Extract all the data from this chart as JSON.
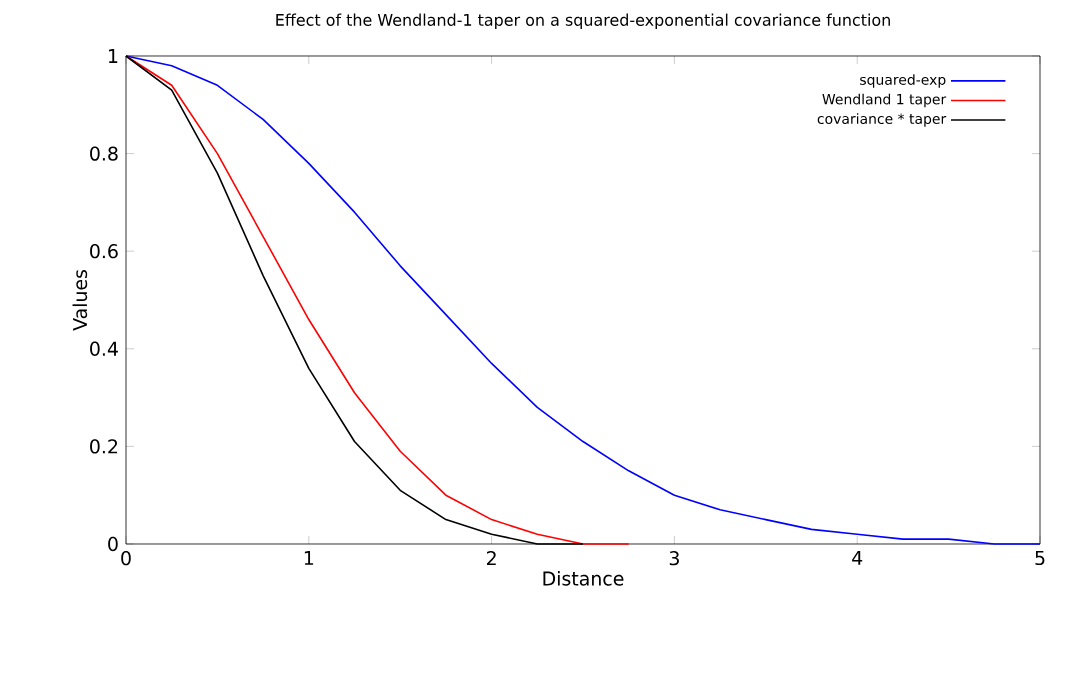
{
  "chart_data": {
    "type": "line",
    "title": "Effect of the Wendland-1 taper on a squared-exponential covariance function",
    "xlabel": "Distance",
    "ylabel": "Values",
    "x": [
      0,
      0.25,
      0.5,
      0.75,
      1,
      1.25,
      1.5,
      1.75,
      2,
      2.25,
      2.5,
      2.75,
      3,
      3.25,
      3.5,
      3.75,
      4,
      4.25,
      4.5,
      4.75,
      5
    ],
    "series": [
      {
        "name": "squared-exp",
        "color": "#0000ff",
        "values": [
          1,
          0.98,
          0.94,
          0.87,
          0.78,
          0.68,
          0.57,
          0.47,
          0.37,
          0.28,
          0.21,
          0.15,
          0.1,
          0.07,
          0.05,
          0.03,
          0.02,
          0.01,
          0.01,
          0,
          0
        ]
      },
      {
        "name": "Wendland 1 taper",
        "color": "#ff0000",
        "values": [
          1,
          0.94,
          0.8,
          0.63,
          0.46,
          0.31,
          0.19,
          0.1,
          0.05,
          0.02,
          0,
          0,
          null,
          null,
          null,
          null,
          null,
          null,
          null,
          null,
          null
        ]
      },
      {
        "name": "covariance * taper",
        "color": "#000000",
        "values": [
          1,
          0.93,
          0.76,
          0.55,
          0.36,
          0.21,
          0.11,
          0.05,
          0.02,
          0,
          0,
          null,
          null,
          null,
          null,
          null,
          null,
          null,
          null,
          null,
          null
        ]
      }
    ],
    "xlim": [
      0,
      5
    ],
    "ylim": [
      0,
      1
    ],
    "xticks": [
      0,
      1,
      2,
      3,
      4,
      5
    ],
    "yticks": [
      0,
      0.2,
      0.4,
      0.6,
      0.8,
      1
    ],
    "legend": "top right",
    "grid": false,
    "marker": "none",
    "line_style": "solid"
  }
}
